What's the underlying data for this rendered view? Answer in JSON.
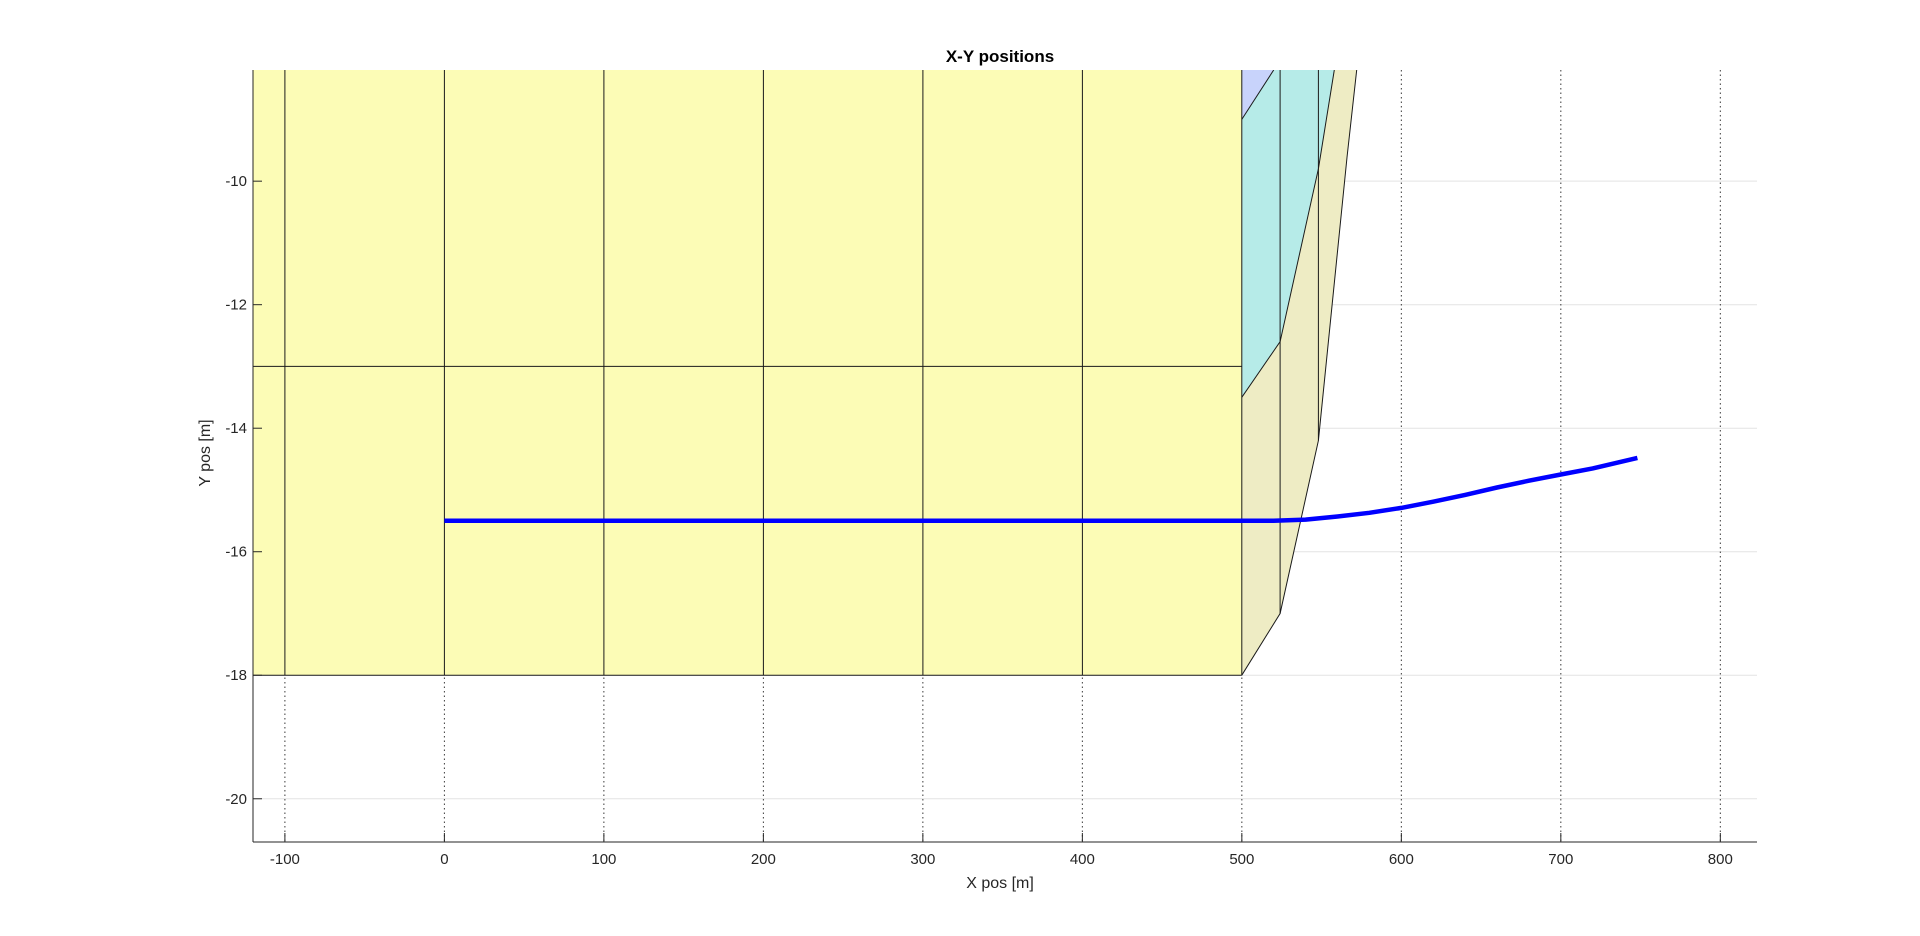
{
  "chart_data": {
    "type": "line",
    "title": "X-Y positions",
    "xlabel": "X pos [m]",
    "ylabel": "Y pos [m]",
    "xlim": [
      -120,
      823
    ],
    "ylim": [
      -20.7,
      -8.2
    ],
    "xticks": [
      -100,
      0,
      100,
      200,
      300,
      400,
      500,
      600,
      700,
      800
    ],
    "xtick_labels": [
      "-100",
      "0",
      "100",
      "200",
      "300",
      "400",
      "500",
      "600",
      "700",
      "800"
    ],
    "yticks": [
      -20,
      -18,
      -16,
      -14,
      -12,
      -10
    ],
    "ytick_labels": [
      "-20",
      "-18",
      "-16",
      "-14",
      "-12",
      "-10"
    ],
    "grid": true,
    "series": [
      {
        "color": "#0000ff",
        "x": [
          0,
          100,
          200,
          300,
          400,
          500,
          520,
          540,
          560,
          580,
          600,
          620,
          640,
          660,
          680,
          700,
          720,
          748
        ],
        "y": [
          -15.5,
          -15.5,
          -15.5,
          -15.5,
          -15.5,
          -15.5,
          -15.5,
          -15.48,
          -15.43,
          -15.37,
          -15.29,
          -15.19,
          -15.08,
          -14.96,
          -14.85,
          -14.75,
          -14.65,
          -14.48
        ]
      }
    ],
    "regions": [
      {
        "color": "#fcfcb6",
        "polygon": [
          [
            -120,
            -18
          ],
          [
            500,
            -18
          ],
          [
            500,
            -8.2
          ],
          [
            -120,
            -8.2
          ]
        ]
      },
      {
        "color": "#fcfcb6",
        "polygon": [
          [
            -120,
            -13
          ],
          [
            500,
            -13
          ]
        ]
      },
      {
        "color": "#eeecc4",
        "polygon": [
          [
            500,
            -18
          ],
          [
            524,
            -17
          ],
          [
            548,
            -14.2
          ],
          [
            566,
            -9.6
          ],
          [
            572,
            -8.2
          ],
          [
            500,
            -8.2
          ]
        ]
      },
      {
        "color": "#b6ebe8",
        "polygon": [
          [
            500,
            -13.5
          ],
          [
            524,
            -12.6
          ],
          [
            548,
            -9.8
          ],
          [
            558,
            -8.2
          ],
          [
            500,
            -8.2
          ]
        ]
      },
      {
        "color": "#c8d3fb",
        "polygon": [
          [
            500,
            -9
          ],
          [
            520,
            -8.2
          ],
          [
            500,
            -8.2
          ]
        ]
      }
    ],
    "region_lines": [
      {
        "x": [
          -100,
          -100
        ],
        "y": [
          -18,
          -8.2
        ]
      },
      {
        "x": [
          0,
          0
        ],
        "y": [
          -18,
          -8.2
        ]
      },
      {
        "x": [
          100,
          100
        ],
        "y": [
          -18,
          -8.2
        ]
      },
      {
        "x": [
          200,
          200
        ],
        "y": [
          -18,
          -8.2
        ]
      },
      {
        "x": [
          300,
          300
        ],
        "y": [
          -18,
          -8.2
        ]
      },
      {
        "x": [
          400,
          400
        ],
        "y": [
          -18,
          -8.2
        ]
      },
      {
        "x": [
          500,
          500
        ],
        "y": [
          -18,
          -8.2
        ]
      },
      {
        "x": [
          -120,
          500
        ],
        "y": [
          -13,
          -13
        ]
      },
      {
        "x": [
          -120,
          500
        ],
        "y": [
          -18,
          -18
        ]
      },
      {
        "x": [
          500,
          524,
          548,
          566,
          572
        ],
        "y": [
          -18,
          -17,
          -14.2,
          -9.6,
          -8.2
        ]
      },
      {
        "x": [
          524,
          524
        ],
        "y": [
          -17,
          -8.2
        ]
      },
      {
        "x": [
          548,
          548
        ],
        "y": [
          -14.2,
          -8.2
        ]
      },
      {
        "x": [
          500,
          524,
          548,
          558
        ],
        "y": [
          -13.5,
          -12.6,
          -9.8,
          -8.2
        ]
      },
      {
        "x": [
          500,
          520
        ],
        "y": [
          -9,
          -8.2
        ]
      }
    ]
  }
}
